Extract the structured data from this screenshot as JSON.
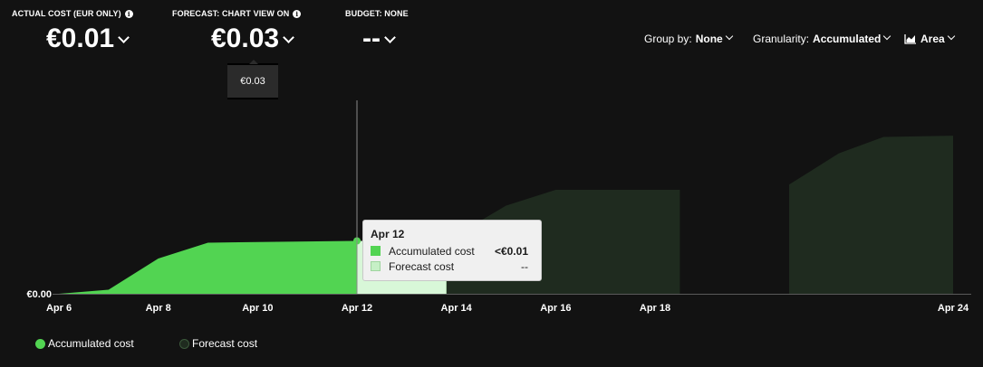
{
  "metrics": {
    "actual": {
      "label": "ACTUAL COST (EUR ONLY)",
      "value": "€0.01"
    },
    "forecast": {
      "label": "FORECAST: CHART VIEW ON",
      "value": "€0.03"
    },
    "budget": {
      "label": "BUDGET: NONE",
      "value": "--"
    }
  },
  "mini_tooltip": {
    "value": "€0.03"
  },
  "controls": {
    "group_by": {
      "label": "Group by:",
      "value": "None"
    },
    "granularity": {
      "label": "Granularity:",
      "value": "Accumulated"
    },
    "chart_type": {
      "value": "Area",
      "icon": "area-chart-icon"
    }
  },
  "tooltip": {
    "title": "Apr 12",
    "rows": [
      {
        "name": "Accumulated cost",
        "value": "<€0.01"
      },
      {
        "name": "Forecast cost",
        "value": "--"
      }
    ]
  },
  "legend": [
    {
      "name": "Accumulated cost"
    },
    {
      "name": "Forecast cost"
    }
  ],
  "colors": {
    "accumulated": "#52d452",
    "accumulated_highlight": "#d8f7d8",
    "forecast": "#1f2b1f",
    "forecast_swatch": "#c6f0c6",
    "axis": "#5a5a5a",
    "crosshair": "#8a8a8a"
  },
  "chart_data": {
    "type": "area",
    "y_axis_label": "€0.00",
    "x_ticks": [
      "Apr 6",
      "Apr 8",
      "Apr 10",
      "Apr 12",
      "Apr 14",
      "Apr 16",
      "Apr 18",
      "Apr 24"
    ],
    "x_tick_days": [
      6,
      8,
      10,
      12,
      14,
      16,
      18,
      24
    ],
    "x_range_days": [
      6,
      24
    ],
    "y_range": [
      0,
      0.03
    ],
    "grid": false,
    "legend_placement": "bottom-left",
    "highlight_day": 12,
    "series": [
      {
        "name": "Accumulated cost",
        "points": [
          [
            6,
            0
          ],
          [
            7,
            0.0007
          ],
          [
            8,
            0.006
          ],
          [
            9,
            0.0087
          ],
          [
            10,
            0.0088
          ],
          [
            11,
            0.0089
          ],
          [
            12,
            0.009
          ],
          [
            13.8,
            0.009
          ]
        ]
      },
      {
        "name": "Forecast cost",
        "segments": [
          [
            [
              13.8,
              0.009
            ],
            [
              14,
              0.01
            ],
            [
              15,
              0.015
            ],
            [
              16,
              0.0177
            ],
            [
              18.5,
              0.0177
            ]
          ],
          [
            [
              20.7,
              0.0186
            ],
            [
              21.7,
              0.0239
            ],
            [
              22.6,
              0.0267
            ],
            [
              24,
              0.0269
            ]
          ]
        ]
      }
    ]
  }
}
